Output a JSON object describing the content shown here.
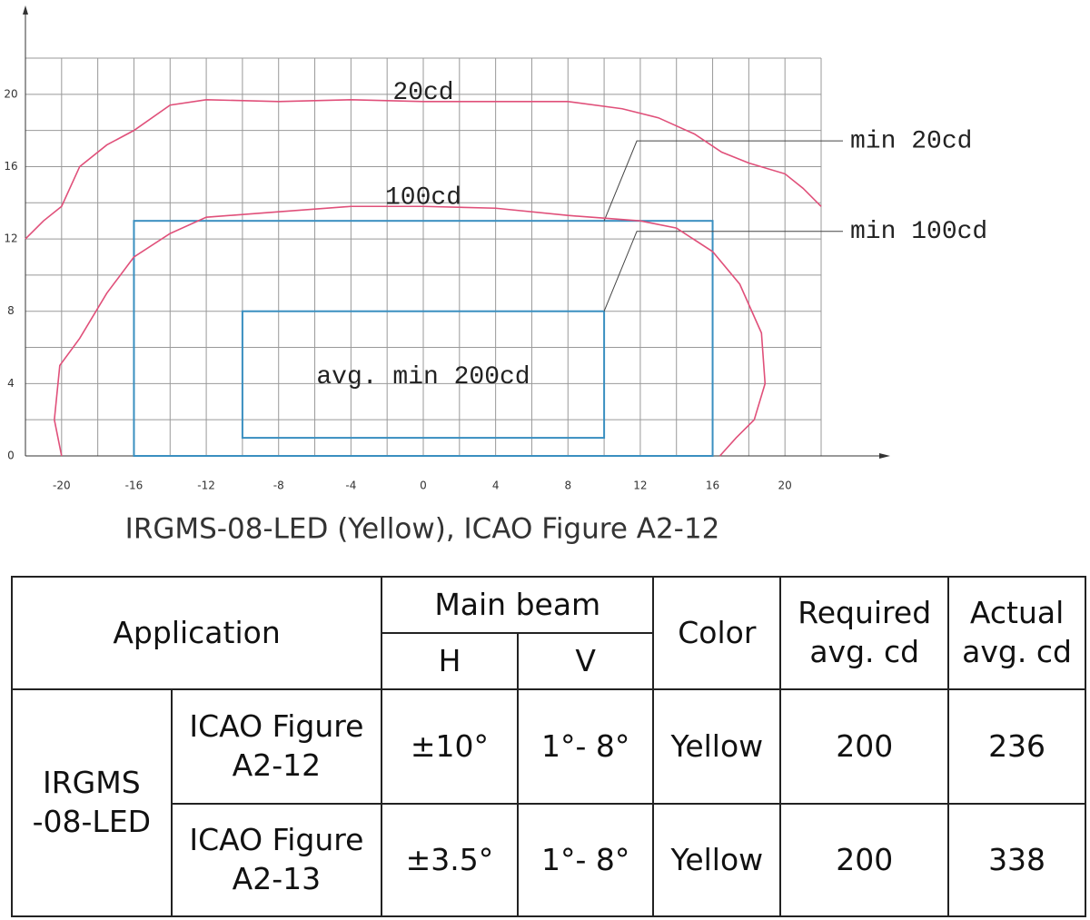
{
  "chart_data": {
    "type": "line",
    "caption": "IRGMS-08-LED (Yellow), ICAO Figure A2-12",
    "xlim": [
      -22,
      22
    ],
    "ylim": [
      0,
      22
    ],
    "xticks": [
      -20,
      -16,
      -12,
      -8,
      -4,
      0,
      4,
      8,
      12,
      16,
      20
    ],
    "yticks": [
      0,
      4,
      8,
      12,
      16,
      20
    ],
    "xgrid": [
      -22,
      -20,
      -18,
      -16,
      -14,
      -12,
      -10,
      -8,
      -6,
      -4,
      -2,
      0,
      2,
      4,
      6,
      8,
      10,
      12,
      14,
      16,
      18,
      20,
      22
    ],
    "ygrid": [
      0,
      2,
      4,
      6,
      8,
      10,
      12,
      14,
      16,
      18,
      20,
      22
    ],
    "grid": true,
    "series": [
      {
        "name": "20cd",
        "color": "#e0507a",
        "x": [
          -22,
          -21,
          -20,
          -19,
          -17.5,
          -16,
          -14,
          -12,
          -8,
          -4,
          0,
          4,
          8,
          11,
          13,
          15,
          16.5,
          18,
          20,
          21,
          22
        ],
        "values": [
          12,
          13,
          13.8,
          16,
          17.2,
          18,
          19.4,
          19.7,
          19.6,
          19.7,
          19.6,
          19.6,
          19.6,
          19.2,
          18.7,
          17.8,
          16.8,
          16.2,
          15.6,
          14.8,
          13.8
        ]
      },
      {
        "name": "100cd",
        "color": "#e0507a",
        "x": [
          -20,
          -20.4,
          -20.1,
          -19,
          -17.5,
          -16,
          -14,
          -12,
          -8,
          -4,
          0,
          4,
          8,
          12,
          14,
          16,
          17.5,
          18.7,
          18.9,
          18.3,
          17.3,
          16.4
        ],
        "values": [
          0,
          2,
          5,
          6.5,
          9,
          11,
          12.3,
          13.2,
          13.5,
          13.8,
          13.8,
          13.7,
          13.3,
          13,
          12.6,
          11.3,
          9.5,
          6.8,
          4,
          2,
          1,
          0
        ]
      }
    ],
    "regions": [
      {
        "label": "min 20cd",
        "color": "#3a8fc0",
        "x": [
          -16,
          16
        ],
        "y": [
          0,
          13
        ]
      },
      {
        "label": "min 100cd",
        "color": "#3a8fc0",
        "x": [
          -10,
          10
        ],
        "y": [
          1,
          8
        ]
      }
    ],
    "annotation": "avg. min 200cd"
  },
  "table": {
    "header": [
      "Application",
      "Main beam",
      "Color",
      "Required avg. cd",
      "Actual avg. cd"
    ],
    "subheader": [
      "H",
      "V"
    ],
    "group": "IRGMS -08-LED",
    "rows": [
      [
        "ICAO Figure A2-12",
        "±10°",
        "1°- 8°",
        "Yellow",
        200,
        236
      ],
      [
        "ICAO Figure A2-13",
        "±3.5°",
        "1°- 8°",
        "Yellow",
        200,
        338
      ]
    ]
  }
}
